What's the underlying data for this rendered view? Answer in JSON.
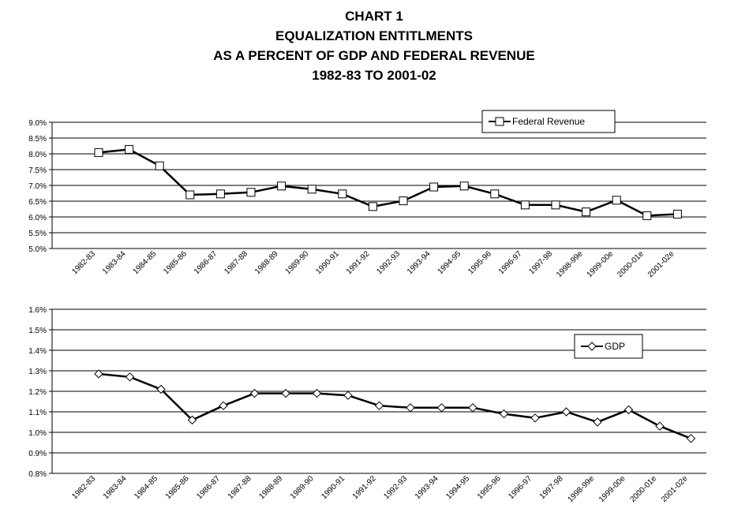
{
  "title_lines": [
    "CHART 1",
    "EQUALIZATION ENTITLMENTS",
    "AS A PERCENT OF GDP AND FEDERAL REVENUE",
    "1982-83 TO 2001-02"
  ],
  "chart_data": [
    {
      "type": "line",
      "categories": [
        "1982-83",
        "1983-84",
        "1984-85",
        "1985-86",
        "1986-87",
        "1987-88",
        "1988-89",
        "1989-90",
        "1990-91",
        "1991-92",
        "1992-93",
        "1993-94",
        "1994-95",
        "1995-96",
        "1996-97",
        "1997-98",
        "1998-99e",
        "1999-00e",
        "2000-01e",
        "2001-02e"
      ],
      "series": [
        {
          "name": "Federal Revenue",
          "marker": "square",
          "values": [
            8.04,
            8.14,
            7.62,
            6.7,
            6.73,
            6.78,
            6.98,
            6.88,
            6.73,
            6.33,
            6.51,
            6.95,
            6.98,
            6.73,
            6.38,
            6.38,
            6.16,
            6.53,
            6.04,
            6.09
          ]
        }
      ],
      "ylim": [
        5.0,
        9.0
      ],
      "yticks": [
        "5.0%",
        "5.5%",
        "6.0%",
        "6.5%",
        "7.0%",
        "7.5%",
        "8.0%",
        "8.5%",
        "9.0%"
      ],
      "grid": true,
      "legend": "top-right"
    },
    {
      "type": "line",
      "categories": [
        "1982-83",
        "1983-84",
        "1984-85",
        "1985-86",
        "1986-87",
        "1987-88",
        "1988-89",
        "1989-90",
        "1990-91",
        "1991-92",
        "1992-93",
        "1993-94",
        "1994-95",
        "1995-96",
        "1996-97",
        "1997-98",
        "1998-99e",
        "1999-00e",
        "2000-01e",
        "2001-02e"
      ],
      "series": [
        {
          "name": "GDP",
          "marker": "diamond",
          "values": [
            1.285,
            1.27,
            1.21,
            1.06,
            1.13,
            1.19,
            1.19,
            1.19,
            1.18,
            1.13,
            1.12,
            1.12,
            1.12,
            1.09,
            1.07,
            1.1,
            1.05,
            1.11,
            1.03,
            0.97
          ]
        }
      ],
      "ylim": [
        0.8,
        1.6
      ],
      "yticks": [
        "0.8%",
        "0.9%",
        "1.0%",
        "1.1%",
        "1.2%",
        "1.3%",
        "1.4%",
        "1.5%",
        "1.6%"
      ],
      "grid": true,
      "legend": "top-right"
    }
  ]
}
